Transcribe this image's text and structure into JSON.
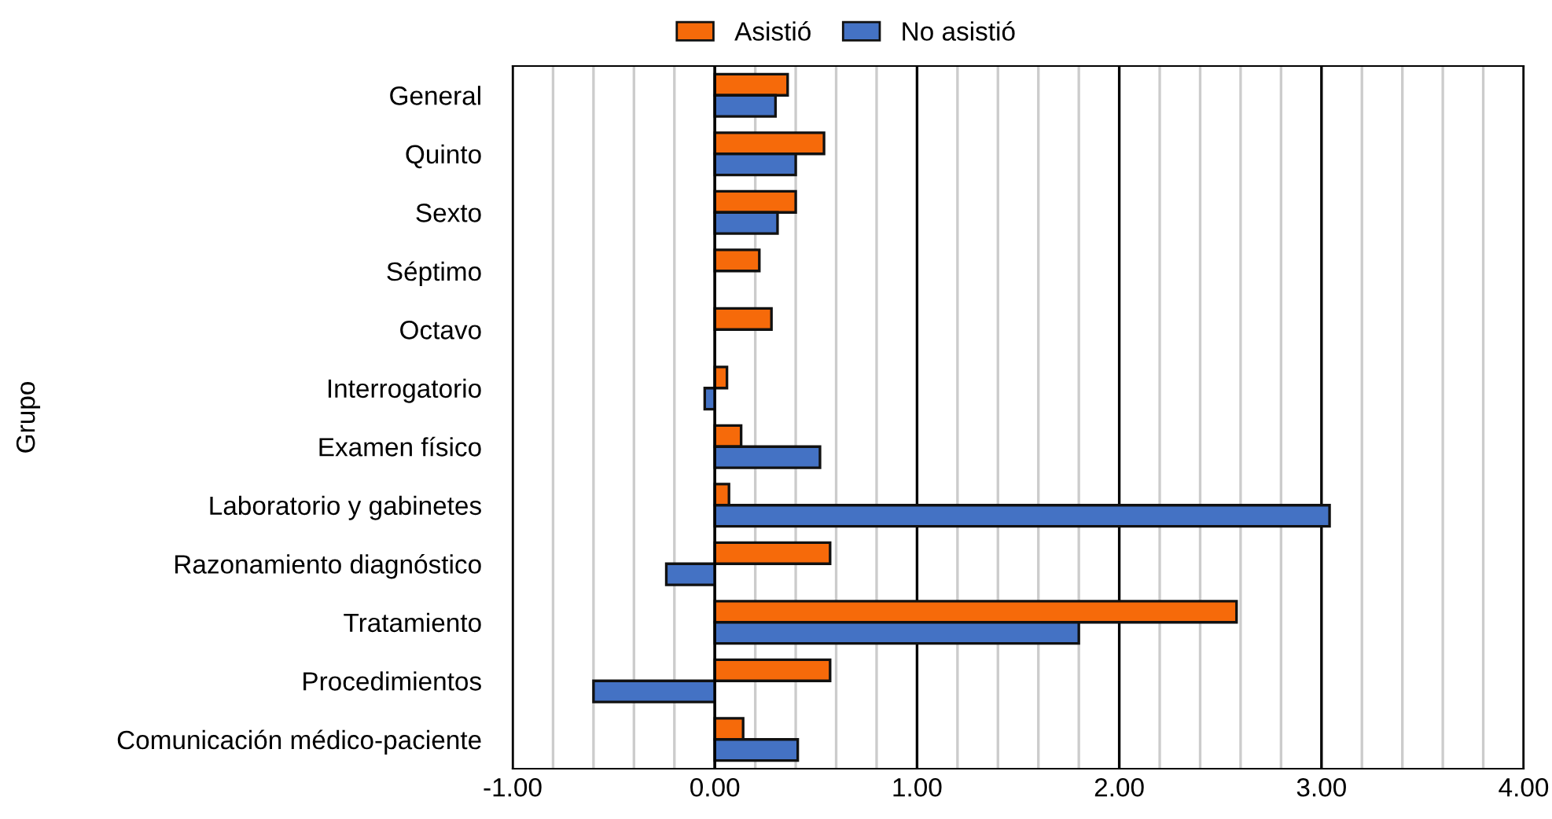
{
  "chart_data": {
    "type": "bar",
    "orientation": "horizontal",
    "ylabel": "Grupo",
    "categories": [
      "General",
      "Quinto",
      "Sexto",
      "Séptimo",
      "Octavo",
      "Interrogatorio",
      "Examen físico",
      "Laboratorio y gabinetes",
      "Razonamiento diagnóstico",
      "Tratamiento",
      "Procedimientos",
      "Comunicación médico-paciente"
    ],
    "series": [
      {
        "name": "Asistió",
        "color": "#f66a0a",
        "values": [
          0.36,
          0.54,
          0.4,
          0.22,
          0.28,
          0.06,
          0.13,
          0.07,
          0.57,
          2.58,
          0.57,
          0.14
        ]
      },
      {
        "name": "No asistió",
        "color": "#4472c4",
        "values": [
          0.3,
          0.4,
          0.31,
          null,
          null,
          -0.05,
          0.52,
          3.04,
          -0.24,
          1.8,
          -0.6,
          0.41
        ]
      }
    ],
    "xlim": [
      -1,
      4
    ],
    "xticks": [
      {
        "value": -1,
        "label": "-1.00"
      },
      {
        "value": -0.8,
        "label": null
      },
      {
        "value": -0.6,
        "label": null
      },
      {
        "value": -0.4,
        "label": null
      },
      {
        "value": -0.2,
        "label": null
      },
      {
        "value": 0,
        "label": "0.00"
      },
      {
        "value": 0.2,
        "label": null
      },
      {
        "value": 0.4,
        "label": null
      },
      {
        "value": 0.6,
        "label": null
      },
      {
        "value": 0.8,
        "label": null
      },
      {
        "value": 1,
        "label": "1.00"
      },
      {
        "value": 1.2,
        "label": null
      },
      {
        "value": 1.4,
        "label": null
      },
      {
        "value": 1.6,
        "label": null
      },
      {
        "value": 1.8,
        "label": null
      },
      {
        "value": 2,
        "label": "2.00"
      },
      {
        "value": 2.2,
        "label": null
      },
      {
        "value": 2.4,
        "label": null
      },
      {
        "value": 2.6,
        "label": null
      },
      {
        "value": 2.8,
        "label": null
      },
      {
        "value": 3,
        "label": "3.00"
      },
      {
        "value": 3.2,
        "label": null
      },
      {
        "value": 3.4,
        "label": null
      },
      {
        "value": 3.6,
        "label": null
      },
      {
        "value": 3.8,
        "label": null
      },
      {
        "value": 4,
        "label": "4.00"
      }
    ],
    "grid": "x",
    "legend": "top"
  }
}
